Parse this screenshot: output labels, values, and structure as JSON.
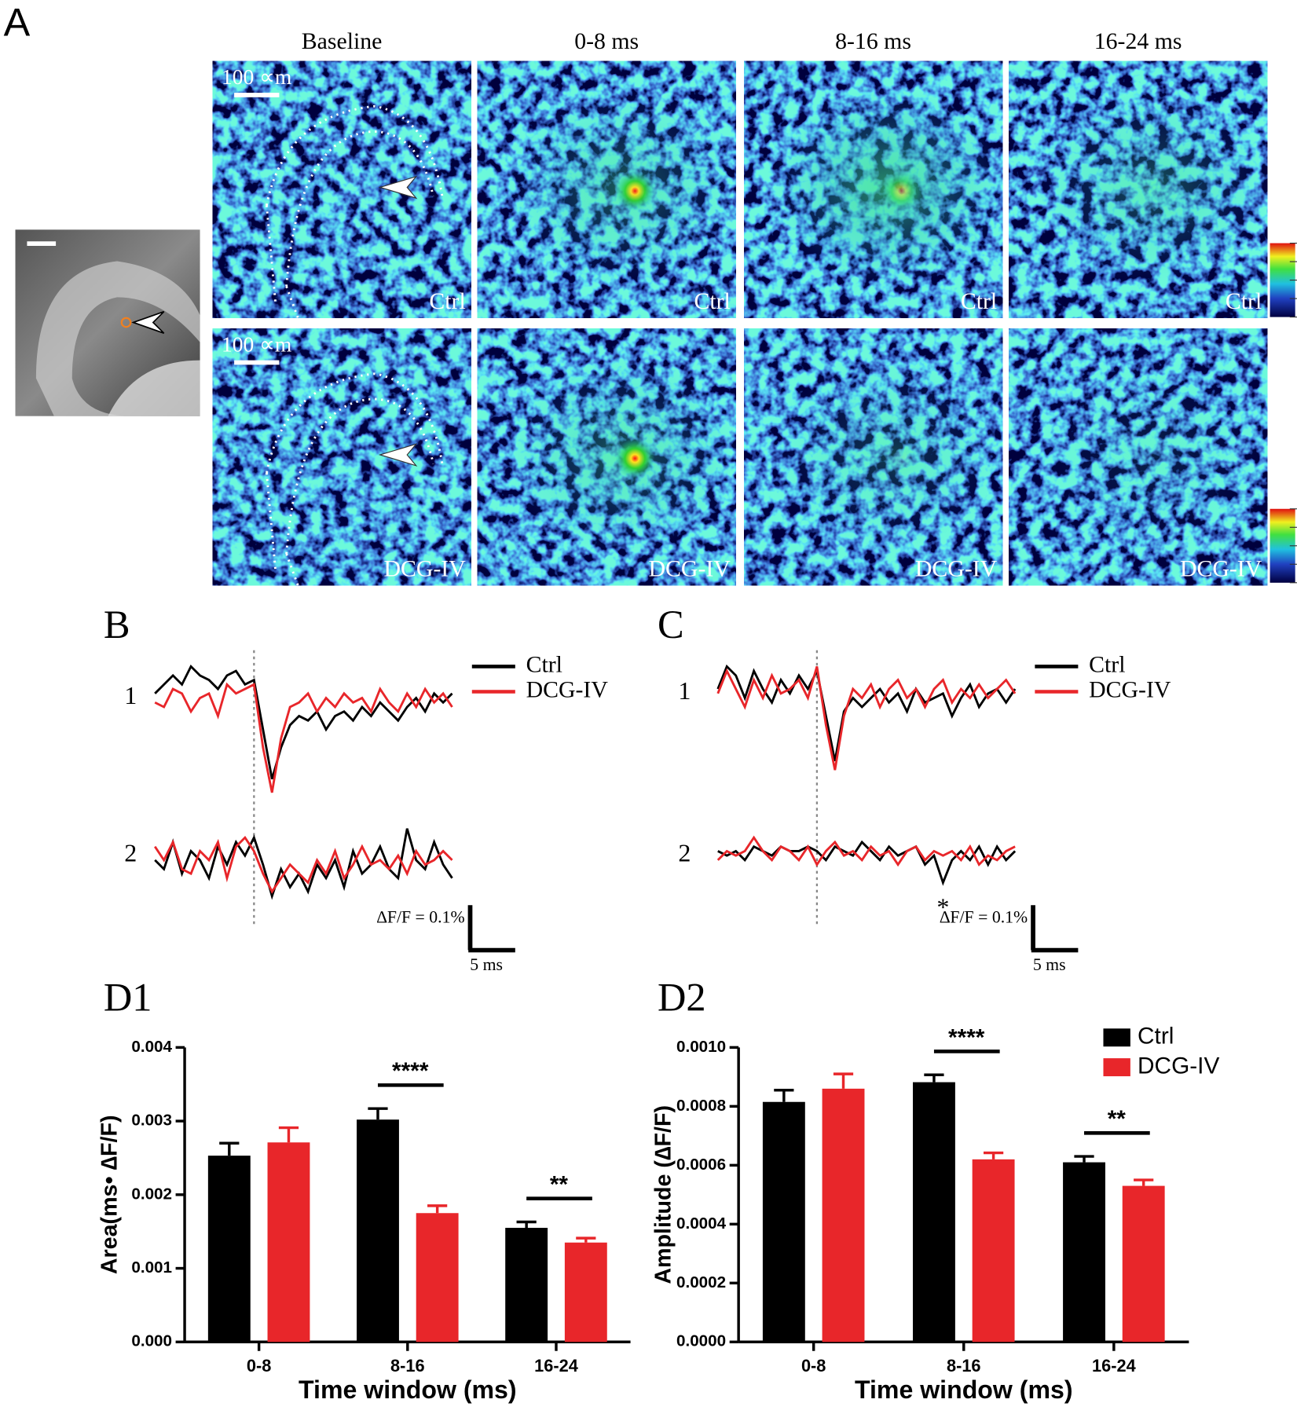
{
  "panel_a": {
    "label": "A",
    "column_titles": [
      "Baseline",
      "0-8 ms",
      "8-16 ms",
      "16-24 ms"
    ],
    "row_labels": [
      "Ctrl",
      "DCG-IV"
    ],
    "scale_bar_label": "100 ∝m"
  },
  "panel_b": {
    "label": "B",
    "row_labels": [
      "1",
      "2"
    ],
    "x": [
      0,
      1,
      2,
      3,
      4,
      5,
      6,
      7,
      8,
      9,
      10,
      11,
      12,
      13,
      14,
      15,
      16,
      17,
      18,
      19,
      20,
      21,
      22,
      23,
      24,
      25,
      26,
      27,
      28,
      29,
      30,
      31,
      32,
      33
    ],
    "stimulus_time": 11,
    "rows": [
      {
        "series": [
          {
            "name": "Ctrl",
            "color": "#000000",
            "values": [
              0,
              0.02,
              0.04,
              0.02,
              0.06,
              0.04,
              0.03,
              0.01,
              0.04,
              0.05,
              0.02,
              0.03,
              -0.08,
              -0.19,
              -0.12,
              -0.07,
              -0.05,
              -0.06,
              -0.04,
              -0.08,
              -0.05,
              -0.04,
              -0.06,
              -0.03,
              -0.05,
              -0.02,
              -0.04,
              -0.06,
              -0.03,
              -0.01,
              -0.04,
              0,
              -0.02,
              0
            ]
          },
          {
            "name": "DCG-IV",
            "color": "#e8262a",
            "values": [
              -0.02,
              -0.03,
              0.01,
              0,
              -0.04,
              -0.01,
              0,
              -0.05,
              0.02,
              0,
              0.01,
              0.02,
              -0.12,
              -0.22,
              -0.1,
              -0.03,
              -0.02,
              0,
              -0.04,
              -0.01,
              -0.03,
              0,
              -0.02,
              -0.01,
              -0.04,
              0.01,
              -0.02,
              -0.04,
              0,
              -0.03,
              0.01,
              -0.02,
              0,
              -0.03
            ]
          }
        ]
      },
      {
        "series": [
          {
            "name": "Ctrl",
            "color": "#000000",
            "values": [
              -0.02,
              -0.04,
              0.02,
              -0.05,
              0,
              -0.02,
              -0.06,
              0.01,
              -0.03,
              0.02,
              -0.01,
              0.03,
              -0.03,
              -0.1,
              -0.04,
              -0.08,
              -0.05,
              -0.09,
              -0.03,
              -0.06,
              -0.02,
              -0.08,
              0,
              -0.05,
              -0.03,
              0.01,
              -0.04,
              -0.06,
              0.05,
              -0.02,
              -0.04,
              0.02,
              -0.03,
              -0.06
            ]
          },
          {
            "name": "DCG-IV",
            "color": "#e8262a",
            "values": [
              0.01,
              -0.02,
              0.02,
              -0.04,
              -0.05,
              0,
              -0.02,
              0.02,
              -0.06,
              0.01,
              0.03,
              0,
              -0.05,
              -0.09,
              -0.06,
              -0.03,
              -0.05,
              -0.07,
              -0.02,
              -0.05,
              0,
              -0.06,
              -0.03,
              0.01,
              -0.03,
              -0.02,
              -0.04,
              -0.01,
              -0.05,
              0,
              -0.03,
              -0.02,
              0,
              -0.02
            ]
          }
        ]
      }
    ],
    "scale_y": 0.1,
    "scale_y_label": "∆F/F = 0.1%",
    "scale_x": 5,
    "scale_x_label": "5 ms"
  },
  "panel_c": {
    "label": "C",
    "row_labels": [
      "1",
      "2"
    ],
    "x": [
      0,
      1,
      2,
      3,
      4,
      5,
      6,
      7,
      8,
      9,
      10,
      11,
      12,
      13,
      14,
      15,
      16,
      17,
      18,
      19,
      20,
      21,
      22,
      23,
      24,
      25,
      26,
      27,
      28,
      29,
      30,
      31,
      32,
      33
    ],
    "stimulus_time": 11,
    "rows": [
      {
        "series": [
          {
            "name": "Ctrl",
            "color": "#000000",
            "values": [
              0,
              0.05,
              0.03,
              -0.02,
              0.04,
              0,
              -0.03,
              0.02,
              -0.01,
              0.03,
              0,
              0.04,
              -0.06,
              -0.16,
              -0.05,
              -0.02,
              -0.04,
              -0.02,
              0,
              -0.03,
              -0.01,
              -0.05,
              0,
              -0.03,
              -0.02,
              -0.01,
              -0.06,
              -0.02,
              0.01,
              -0.04,
              -0.01,
              0,
              -0.03,
              0
            ]
          },
          {
            "name": "DCG-IV",
            "color": "#e8262a",
            "values": [
              -0.01,
              0.04,
              0,
              -0.04,
              0.02,
              -0.02,
              0.03,
              -0.01,
              0,
              0.02,
              -0.02,
              0.05,
              -0.08,
              -0.18,
              -0.06,
              0,
              -0.02,
              0.01,
              -0.04,
              0,
              0.02,
              -0.02,
              0,
              -0.04,
              0,
              0.02,
              -0.03,
              0,
              -0.02,
              0.01,
              -0.02,
              0,
              0.02,
              -0.01
            ]
          }
        ]
      },
      {
        "series": [
          {
            "name": "Ctrl",
            "color": "#000000",
            "values": [
              0,
              -0.01,
              0,
              -0.02,
              0.01,
              0,
              -0.01,
              0.01,
              0,
              0,
              0.01,
              0,
              -0.02,
              0.01,
              0,
              -0.01,
              0.02,
              0,
              -0.02,
              0.01,
              -0.01,
              0,
              0.01,
              -0.03,
              -0.01,
              -0.07,
              -0.02,
              0,
              -0.02,
              0.01,
              -0.03,
              0.01,
              -0.02,
              0
            ]
          },
          {
            "name": "DCG-IV",
            "color": "#e8262a",
            "values": [
              -0.02,
              0,
              -0.01,
              0,
              0.03,
              0,
              -0.02,
              0.01,
              0,
              -0.02,
              0.01,
              -0.03,
              0,
              0.02,
              -0.01,
              0,
              -0.02,
              0.01,
              -0.01,
              0,
              -0.03,
              0,
              0.01,
              -0.02,
              0,
              -0.01,
              0,
              -0.02,
              0.01,
              -0.03,
              -0.01,
              -0.02,
              0,
              0.01
            ]
          }
        ]
      }
    ],
    "annotation": "*",
    "scale_y": 0.1,
    "scale_y_label": "∆F/F = 0.1%",
    "scale_x": 5,
    "scale_x_label": "5 ms"
  },
  "chart_data": [
    {
      "type": "bar",
      "label": "D1",
      "ylabel": "Area(ms• ∆F/F)",
      "xlabel": "Time window (ms)",
      "categories": [
        "0-8",
        "8-16",
        "16-24"
      ],
      "series": [
        {
          "name": "Ctrl",
          "color": "#000000",
          "values": [
            0.00253,
            0.00302,
            0.00155
          ],
          "errors": [
            0.00017,
            0.00015,
            8e-05
          ]
        },
        {
          "name": "DCG-IV",
          "color": "#e8262a",
          "values": [
            0.00271,
            0.00175,
            0.00135
          ],
          "errors": [
            0.0002,
            0.0001,
            6e-05
          ]
        }
      ],
      "ylim": [
        0,
        0.004
      ],
      "yticks": [
        {
          "value": 0,
          "label": "0.000"
        },
        {
          "value": 0.001,
          "label": "0.001"
        },
        {
          "value": 0.002,
          "label": "0.002"
        },
        {
          "value": 0.003,
          "label": "0.003"
        },
        {
          "value": 0.004,
          "label": "0.004"
        }
      ],
      "annotations": [
        {
          "text": "****",
          "category": "8-16"
        },
        {
          "text": "**",
          "category": "16-24"
        }
      ],
      "legend": false
    },
    {
      "type": "bar",
      "label": "D2",
      "ylabel": "Amplitude (∆F/F)",
      "xlabel": "Time window (ms)",
      "categories": [
        "0-8",
        "8-16",
        "16-24"
      ],
      "series": [
        {
          "name": "Ctrl",
          "color": "#000000",
          "values": [
            0.000815,
            0.000882,
            0.00061
          ],
          "errors": [
            4e-05,
            2.5e-05,
            2e-05
          ]
        },
        {
          "name": "DCG-IV",
          "color": "#e8262a",
          "values": [
            0.00086,
            0.00062,
            0.00053
          ],
          "errors": [
            5e-05,
            2.2e-05,
            2e-05
          ]
        }
      ],
      "ylim": [
        0,
        0.001
      ],
      "yticks": [
        {
          "value": 0,
          "label": "0.0000"
        },
        {
          "value": 0.0002,
          "label": "0.0002"
        },
        {
          "value": 0.0004,
          "label": "0.0004"
        },
        {
          "value": 0.0006,
          "label": "0.0006"
        },
        {
          "value": 0.0008,
          "label": "0.0008"
        },
        {
          "value": 0.001,
          "label": "0.0010"
        }
      ],
      "annotations": [
        {
          "text": "****",
          "category": "8-16"
        },
        {
          "text": "**",
          "category": "16-24"
        }
      ],
      "legend": true,
      "legend_position": "upper right"
    }
  ]
}
